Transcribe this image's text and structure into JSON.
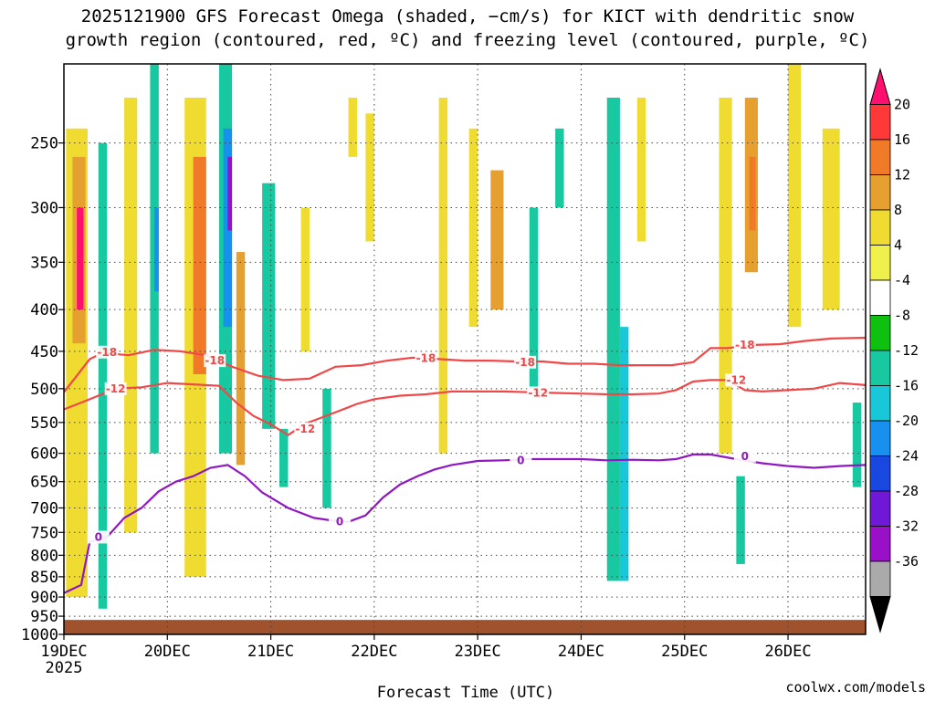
{
  "chart_data": {
    "type": "heatmap",
    "title_line1": "2025121900 GFS Forecast Omega (shaded, −cm/s) for KICT with dendritic snow",
    "title_line2": "growth region (contoured, red, ºC) and freezing level (contoured, purple, ºC)",
    "xlabel": "Forecast Time (UTC)",
    "ylabel": "",
    "credit": "coolwx.com/models",
    "credit_color": "#cc2a2a",
    "x_range_hours": [
      0,
      186
    ],
    "y_range_hpa": [
      1000,
      200
    ],
    "y_scale": "log-pressure",
    "grid": "dotted",
    "x_ticks": [
      {
        "label": "19DEC",
        "hour": 0,
        "sub": "2025"
      },
      {
        "label": "20DEC",
        "hour": 24,
        "sub": ""
      },
      {
        "label": "21DEC",
        "hour": 48,
        "sub": ""
      },
      {
        "label": "22DEC",
        "hour": 72,
        "sub": ""
      },
      {
        "label": "23DEC",
        "hour": 96,
        "sub": ""
      },
      {
        "label": "24DEC",
        "hour": 120,
        "sub": ""
      },
      {
        "label": "25DEC",
        "hour": 144,
        "sub": ""
      },
      {
        "label": "26DEC",
        "hour": 168,
        "sub": ""
      }
    ],
    "y_ticks": [
      250,
      300,
      350,
      400,
      450,
      500,
      550,
      600,
      650,
      700,
      750,
      800,
      850,
      900,
      950,
      1000
    ],
    "colorbar": {
      "labels": [
        "20",
        "16",
        "12",
        "8",
        "4",
        "-4",
        "-8",
        "-12",
        "-16",
        "-20",
        "-24",
        "-28",
        "-32",
        "-36"
      ],
      "colors_top_to_bottom": [
        "#ff1070",
        "#ff3838",
        "#f07a28",
        "#e6a030",
        "#f0dc30",
        "#f0f04a",
        "#ffffff",
        "#10c010",
        "#18c8a0",
        "#18c8d8",
        "#1890f0",
        "#1848e0",
        "#7018d8",
        "#9a10c8",
        "#aaaaaa",
        "#000000"
      ]
    },
    "terrain_color": "#a0522d",
    "contours": [
      {
        "name": "-18",
        "color": "#f04848",
        "points": [
          [
            0,
            505
          ],
          [
            3,
            482
          ],
          [
            6,
            460
          ],
          [
            9,
            452
          ],
          [
            15,
            455
          ],
          [
            21,
            448
          ],
          [
            27,
            450
          ],
          [
            33,
            455
          ],
          [
            39,
            470
          ],
          [
            45,
            482
          ],
          [
            51,
            488
          ],
          [
            57,
            486
          ],
          [
            63,
            470
          ],
          [
            69,
            468
          ],
          [
            75,
            462
          ],
          [
            81,
            458
          ],
          [
            87,
            460
          ],
          [
            93,
            462
          ],
          [
            99,
            462
          ],
          [
            105,
            463
          ],
          [
            111,
            463
          ],
          [
            117,
            466
          ],
          [
            123,
            466
          ],
          [
            129,
            468
          ],
          [
            135,
            468
          ],
          [
            141,
            468
          ],
          [
            146,
            464
          ],
          [
            150,
            446
          ],
          [
            154,
            446
          ],
          [
            160,
            442
          ],
          [
            166,
            441
          ],
          [
            172,
            437
          ],
          [
            178,
            434
          ],
          [
            186,
            433
          ]
        ],
        "labels": [
          [
            10,
            451
          ],
          [
            35,
            462
          ],
          [
            84,
            459
          ],
          [
            107,
            464
          ],
          [
            158,
            442
          ]
        ]
      },
      {
        "name": "-12",
        "color": "#f04848",
        "points": [
          [
            0,
            530
          ],
          [
            4,
            520
          ],
          [
            8,
            510
          ],
          [
            12,
            500
          ],
          [
            18,
            498
          ],
          [
            24,
            492
          ],
          [
            30,
            494
          ],
          [
            36,
            496
          ],
          [
            40,
            520
          ],
          [
            44,
            540
          ],
          [
            48,
            553
          ],
          [
            52,
            570
          ],
          [
            56,
            552
          ],
          [
            60,
            542
          ],
          [
            64,
            532
          ],
          [
            68,
            522
          ],
          [
            72,
            515
          ],
          [
            78,
            510
          ],
          [
            84,
            508
          ],
          [
            90,
            504
          ],
          [
            96,
            504
          ],
          [
            102,
            504
          ],
          [
            108,
            505
          ],
          [
            114,
            506
          ],
          [
            120,
            507
          ],
          [
            126,
            508
          ],
          [
            132,
            508
          ],
          [
            138,
            507
          ],
          [
            142,
            502
          ],
          [
            146,
            490
          ],
          [
            150,
            488
          ],
          [
            154,
            488
          ],
          [
            158,
            502
          ],
          [
            162,
            504
          ],
          [
            168,
            502
          ],
          [
            174,
            500
          ],
          [
            180,
            492
          ],
          [
            186,
            495
          ]
        ],
        "labels": [
          [
            12,
            500
          ],
          [
            56,
            560
          ],
          [
            110,
            506
          ],
          [
            156,
            488
          ]
        ]
      },
      {
        "name": "0",
        "color": "#9018c0",
        "points": [
          [
            0,
            890
          ],
          [
            4,
            870
          ],
          [
            6,
            770
          ],
          [
            10,
            760
          ],
          [
            14,
            720
          ],
          [
            18,
            700
          ],
          [
            22,
            668
          ],
          [
            26,
            650
          ],
          [
            30,
            640
          ],
          [
            34,
            625
          ],
          [
            38,
            620
          ],
          [
            42,
            640
          ],
          [
            46,
            670
          ],
          [
            52,
            700
          ],
          [
            58,
            720
          ],
          [
            62,
            725
          ],
          [
            66,
            728
          ],
          [
            70,
            715
          ],
          [
            74,
            680
          ],
          [
            78,
            655
          ],
          [
            82,
            640
          ],
          [
            86,
            628
          ],
          [
            90,
            620
          ],
          [
            96,
            613
          ],
          [
            102,
            612
          ],
          [
            108,
            610
          ],
          [
            114,
            610
          ],
          [
            120,
            610
          ],
          [
            126,
            612
          ],
          [
            132,
            611
          ],
          [
            138,
            612
          ],
          [
            142,
            610
          ],
          [
            146,
            602
          ],
          [
            150,
            602
          ],
          [
            156,
            610
          ],
          [
            162,
            617
          ],
          [
            168,
            622
          ],
          [
            174,
            625
          ],
          [
            180,
            622
          ],
          [
            186,
            620
          ]
        ],
        "labels": [
          [
            8,
            760
          ],
          [
            64,
            728
          ],
          [
            106,
            612
          ],
          [
            158,
            605
          ]
        ]
      }
    ],
    "omega_cells": [
      {
        "x": 0.5,
        "w": 5,
        "p1": 240,
        "p2": 900,
        "v": 4
      },
      {
        "x": 2,
        "w": 3,
        "p1": 260,
        "p2": 440,
        "v": 8
      },
      {
        "x": 3,
        "w": 1.5,
        "p1": 300,
        "p2": 400,
        "v": 20
      },
      {
        "x": 8,
        "w": 2,
        "p1": 250,
        "p2": 930,
        "v": -8
      },
      {
        "x": 14,
        "w": 3,
        "p1": 220,
        "p2": 750,
        "v": 4
      },
      {
        "x": 20,
        "w": 2,
        "p1": 200,
        "p2": 600,
        "v": -8
      },
      {
        "x": 21,
        "w": 1,
        "p1": 300,
        "p2": 380,
        "v": -16
      },
      {
        "x": 28,
        "w": 5,
        "p1": 220,
        "p2": 850,
        "v": 4
      },
      {
        "x": 30,
        "w": 3,
        "p1": 260,
        "p2": 480,
        "v": 12
      },
      {
        "x": 36,
        "w": 3,
        "p1": 200,
        "p2": 600,
        "v": -8
      },
      {
        "x": 37,
        "w": 2,
        "p1": 240,
        "p2": 420,
        "v": -16
      },
      {
        "x": 38,
        "w": 1,
        "p1": 260,
        "p2": 320,
        "v": -28
      },
      {
        "x": 40,
        "w": 2,
        "p1": 340,
        "p2": 620,
        "v": 8
      },
      {
        "x": 46,
        "w": 3,
        "p1": 280,
        "p2": 560,
        "v": -8
      },
      {
        "x": 50,
        "w": 2,
        "p1": 560,
        "p2": 660,
        "v": -8
      },
      {
        "x": 55,
        "w": 2,
        "p1": 300,
        "p2": 450,
        "v": 4
      },
      {
        "x": 60,
        "w": 2,
        "p1": 500,
        "p2": 700,
        "v": -8
      },
      {
        "x": 66,
        "w": 2,
        "p1": 220,
        "p2": 260,
        "v": 4
      },
      {
        "x": 70,
        "w": 2,
        "p1": 230,
        "p2": 330,
        "v": 4
      },
      {
        "x": 87,
        "w": 2,
        "p1": 220,
        "p2": 600,
        "v": 4
      },
      {
        "x": 94,
        "w": 2,
        "p1": 240,
        "p2": 420,
        "v": 4
      },
      {
        "x": 99,
        "w": 3,
        "p1": 270,
        "p2": 400,
        "v": 8
      },
      {
        "x": 108,
        "w": 2,
        "p1": 300,
        "p2": 500,
        "v": -8
      },
      {
        "x": 114,
        "w": 2,
        "p1": 240,
        "p2": 300,
        "v": -8
      },
      {
        "x": 126,
        "w": 3,
        "p1": 220,
        "p2": 860,
        "v": -8
      },
      {
        "x": 129,
        "w": 2,
        "p1": 420,
        "p2": 860,
        "v": -12
      },
      {
        "x": 133,
        "w": 2,
        "p1": 220,
        "p2": 330,
        "v": 4
      },
      {
        "x": 152,
        "w": 3,
        "p1": 220,
        "p2": 600,
        "v": 4
      },
      {
        "x": 158,
        "w": 3,
        "p1": 220,
        "p2": 360,
        "v": 8
      },
      {
        "x": 159,
        "w": 1.5,
        "p1": 260,
        "p2": 320,
        "v": 12
      },
      {
        "x": 156,
        "w": 2,
        "p1": 640,
        "p2": 820,
        "v": -8
      },
      {
        "x": 168,
        "w": 3,
        "p1": 200,
        "p2": 420,
        "v": 4
      },
      {
        "x": 176,
        "w": 4,
        "p1": 240,
        "p2": 400,
        "v": 4
      },
      {
        "x": 183,
        "w": 2,
        "p1": 520,
        "p2": 660,
        "v": -8
      }
    ]
  }
}
